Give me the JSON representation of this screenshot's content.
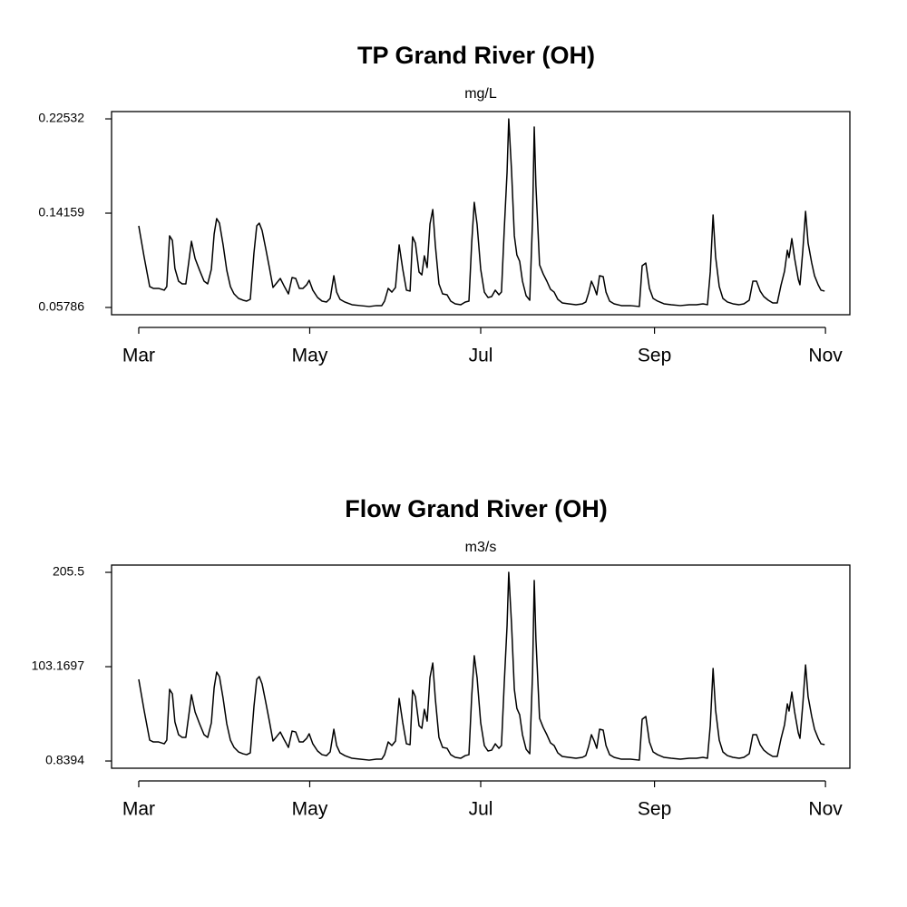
{
  "chart_data": [
    {
      "type": "line",
      "title": "TP Grand River (OH)",
      "subtitle": "mg/L",
      "color": "#000000",
      "xlim": [
        -9.7,
        253.7
      ],
      "xticks": [
        {
          "value": 0,
          "label": "Mar"
        },
        {
          "value": 61,
          "label": "May"
        },
        {
          "value": 122,
          "label": "Jul"
        },
        {
          "value": 184,
          "label": "Sep"
        },
        {
          "value": 245,
          "label": "Nov"
        }
      ],
      "ylim": [
        0.0514,
        0.2318
      ],
      "yticks": [
        0.05786,
        0.14159,
        0.22532
      ],
      "x": [
        0.0,
        1.9,
        3.9,
        5.2,
        7.1,
        9.1,
        10.0,
        11.0,
        12.0,
        12.9,
        14.2,
        15.5,
        16.8,
        17.8,
        18.8,
        20.1,
        21.7,
        23.3,
        24.6,
        25.9,
        26.9,
        27.8,
        28.8,
        30.1,
        31.4,
        32.7,
        34.0,
        35.6,
        37.2,
        38.5,
        39.8,
        41.1,
        42.1,
        43.0,
        44.0,
        45.3,
        46.6,
        47.9,
        49.2,
        50.5,
        51.8,
        53.4,
        54.7,
        56.0,
        57.3,
        58.6,
        59.9,
        60.8,
        62.1,
        63.8,
        65.4,
        67.0,
        68.3,
        69.6,
        70.6,
        71.8,
        73.5,
        76.1,
        79.0,
        82.2,
        84.8,
        86.7,
        87.7,
        89.0,
        90.3,
        91.6,
        92.9,
        94.2,
        95.5,
        96.8,
        97.7,
        98.7,
        100.0,
        101.0,
        101.9,
        102.9,
        103.9,
        104.9,
        105.8,
        107.1,
        108.4,
        110.0,
        111.3,
        112.9,
        114.9,
        116.5,
        117.8,
        118.8,
        119.7,
        120.7,
        122.0,
        123.3,
        124.6,
        125.9,
        127.2,
        128.5,
        129.4,
        130.4,
        131.4,
        132.0,
        133.0,
        134.0,
        134.9,
        135.9,
        136.9,
        138.2,
        139.5,
        140.5,
        141.1,
        141.7,
        143.0,
        144.3,
        145.6,
        146.9,
        148.2,
        149.5,
        151.1,
        153.4,
        156.0,
        158.3,
        159.5,
        160.5,
        161.5,
        162.5,
        163.4,
        164.4,
        165.7,
        166.7,
        168.0,
        169.6,
        172.2,
        175.4,
        178.6,
        179.6,
        180.9,
        182.2,
        183.5,
        185.1,
        187.4,
        190.0,
        193.2,
        196.4,
        199.0,
        201.3,
        202.9,
        203.9,
        204.9,
        205.8,
        207.1,
        208.4,
        210.0,
        212.0,
        214.2,
        215.9,
        217.8,
        219.1,
        220.4,
        221.7,
        223.0,
        224.6,
        226.2,
        227.8,
        229.1,
        230.4,
        231.4,
        232.0,
        233.0,
        234.0,
        235.3,
        235.9,
        236.9,
        237.9,
        238.8,
        240.1,
        241.1,
        242.4,
        243.4,
        244.7
      ],
      "values": [
        0.1303,
        0.1029,
        0.0764,
        0.0748,
        0.0748,
        0.0732,
        0.0764,
        0.1215,
        0.1174,
        0.0925,
        0.0812,
        0.0788,
        0.0788,
        0.0973,
        0.1166,
        0.1013,
        0.0909,
        0.0812,
        0.0788,
        0.0917,
        0.1231,
        0.1368,
        0.1327,
        0.1134,
        0.0909,
        0.0764,
        0.0699,
        0.0659,
        0.0643,
        0.0635,
        0.0651,
        0.1062,
        0.1303,
        0.1327,
        0.1263,
        0.1102,
        0.0933,
        0.0756,
        0.0796,
        0.0836,
        0.0772,
        0.0699,
        0.0844,
        0.0836,
        0.0748,
        0.0748,
        0.078,
        0.082,
        0.0732,
        0.0667,
        0.0635,
        0.0627,
        0.0659,
        0.086,
        0.0715,
        0.0651,
        0.0627,
        0.0603,
        0.0595,
        0.0587,
        0.0595,
        0.0595,
        0.0635,
        0.0748,
        0.0715,
        0.0756,
        0.1134,
        0.0917,
        0.0732,
        0.0724,
        0.1206,
        0.115,
        0.0893,
        0.0868,
        0.1037,
        0.0933,
        0.1319,
        0.1448,
        0.1134,
        0.0788,
        0.0699,
        0.0691,
        0.0635,
        0.0611,
        0.0603,
        0.0627,
        0.0635,
        0.1158,
        0.1512,
        0.1319,
        0.0917,
        0.0715,
        0.0667,
        0.0675,
        0.0732,
        0.0691,
        0.0715,
        0.1271,
        0.1778,
        0.2253,
        0.1794,
        0.1215,
        0.1045,
        0.0989,
        0.0812,
        0.0683,
        0.0643,
        0.136,
        0.2181,
        0.1657,
        0.0957,
        0.0876,
        0.0812,
        0.074,
        0.0715,
        0.0651,
        0.0619,
        0.0611,
        0.0603,
        0.0611,
        0.0627,
        0.0707,
        0.0812,
        0.0756,
        0.0691,
        0.086,
        0.0852,
        0.0715,
        0.0635,
        0.0611,
        0.0595,
        0.0595,
        0.0587,
        0.0949,
        0.0973,
        0.0748,
        0.0659,
        0.0635,
        0.0611,
        0.0603,
        0.0595,
        0.0603,
        0.0603,
        0.0611,
        0.0603,
        0.0893,
        0.14,
        0.1029,
        0.0764,
        0.0659,
        0.0627,
        0.0611,
        0.0603,
        0.0611,
        0.0643,
        0.0812,
        0.0812,
        0.0724,
        0.0675,
        0.0643,
        0.0619,
        0.0619,
        0.0772,
        0.0901,
        0.1086,
        0.1021,
        0.119,
        0.1013,
        0.0828,
        0.078,
        0.1078,
        0.1432,
        0.115,
        0.0973,
        0.086,
        0.078,
        0.0732,
        0.0724
      ]
    },
    {
      "type": "line",
      "title": "Flow Grand River (OH)",
      "subtitle": "m3/s",
      "color": "#000000",
      "xlim": [
        -9.7,
        253.7
      ],
      "xticks": [
        {
          "value": 0,
          "label": "Mar"
        },
        {
          "value": 61,
          "label": "May"
        },
        {
          "value": 122,
          "label": "Jul"
        },
        {
          "value": 184,
          "label": "Sep"
        },
        {
          "value": 245,
          "label": "Nov"
        }
      ],
      "ylim": [
        -7.0,
        213.4
      ],
      "yticks": [
        0.8394,
        103.1697,
        205.5
      ],
      "x": [
        0.0,
        1.9,
        3.9,
        5.2,
        7.1,
        9.1,
        10.0,
        11.0,
        12.0,
        12.9,
        14.2,
        15.5,
        16.8,
        17.8,
        18.8,
        20.1,
        21.7,
        23.3,
        24.6,
        25.9,
        26.9,
        27.8,
        28.8,
        30.1,
        31.4,
        32.7,
        34.0,
        35.6,
        37.2,
        38.5,
        39.8,
        41.1,
        42.1,
        43.0,
        44.0,
        45.3,
        46.6,
        47.9,
        49.2,
        50.5,
        51.8,
        53.4,
        54.7,
        56.0,
        57.3,
        58.6,
        59.9,
        60.8,
        62.1,
        63.8,
        65.4,
        67.0,
        68.3,
        69.6,
        70.6,
        71.8,
        73.5,
        76.1,
        79.0,
        82.2,
        84.8,
        86.7,
        87.7,
        89.0,
        90.3,
        91.6,
        92.9,
        94.2,
        95.5,
        96.8,
        97.7,
        98.7,
        100.0,
        101.0,
        101.9,
        102.9,
        103.9,
        104.9,
        105.8,
        107.1,
        108.4,
        110.0,
        111.3,
        112.9,
        114.9,
        116.5,
        117.8,
        118.8,
        119.7,
        120.7,
        122.0,
        123.3,
        124.6,
        125.9,
        127.2,
        128.5,
        129.4,
        130.4,
        131.4,
        132.0,
        133.0,
        134.0,
        134.9,
        135.9,
        136.9,
        138.2,
        139.5,
        140.5,
        141.1,
        141.7,
        143.0,
        144.3,
        145.6,
        146.9,
        148.2,
        149.5,
        151.1,
        153.4,
        156.0,
        158.3,
        159.5,
        160.5,
        161.5,
        162.5,
        163.4,
        164.4,
        165.7,
        166.7,
        168.0,
        169.6,
        172.2,
        175.4,
        178.6,
        179.6,
        180.9,
        182.2,
        183.5,
        185.1,
        187.4,
        190.0,
        193.2,
        196.4,
        199.0,
        201.3,
        202.9,
        203.9,
        204.9,
        205.8,
        207.1,
        208.4,
        210.0,
        212.0,
        214.2,
        215.9,
        217.8,
        219.1,
        220.4,
        221.7,
        223.0,
        224.6,
        226.2,
        227.8,
        229.1,
        230.4,
        231.4,
        232.0,
        233.0,
        234.0,
        235.3,
        235.9,
        236.9,
        237.9,
        238.8,
        240.1,
        241.1,
        242.4,
        243.4,
        244.7
      ],
      "values": [
        89.4,
        56.0,
        23.5,
        21.5,
        21.5,
        19.5,
        23.5,
        78.6,
        73.7,
        43.2,
        29.4,
        26.4,
        26.4,
        49.1,
        72.7,
        54.0,
        41.2,
        29.4,
        26.4,
        42.2,
        80.5,
        97.3,
        92.4,
        68.7,
        41.2,
        23.5,
        15.6,
        10.7,
        8.7,
        7.7,
        9.7,
        59.9,
        89.4,
        92.4,
        84.5,
        64.8,
        44.1,
        22.5,
        27.4,
        32.3,
        24.5,
        15.6,
        33.3,
        32.3,
        21.5,
        21.5,
        25.4,
        30.4,
        19.5,
        11.7,
        7.7,
        6.7,
        10.7,
        35.3,
        17.6,
        9.7,
        6.7,
        3.8,
        2.8,
        1.8,
        2.8,
        2.8,
        7.7,
        21.5,
        17.6,
        22.5,
        68.7,
        42.2,
        19.5,
        18.6,
        77.6,
        70.7,
        39.2,
        36.3,
        56.9,
        44.1,
        91.4,
        107.1,
        68.7,
        26.4,
        15.6,
        14.6,
        7.7,
        4.8,
        3.8,
        6.7,
        7.7,
        71.7,
        115.0,
        91.4,
        42.2,
        17.6,
        11.7,
        12.6,
        19.5,
        14.6,
        17.6,
        85.5,
        147.5,
        205.5,
        149.4,
        78.6,
        57.9,
        51.0,
        29.4,
        13.6,
        8.7,
        96.3,
        196.7,
        132.7,
        47.1,
        37.2,
        29.4,
        20.5,
        17.6,
        9.7,
        5.8,
        4.8,
        3.8,
        4.8,
        6.7,
        16.6,
        29.4,
        22.5,
        14.6,
        35.3,
        34.3,
        17.6,
        7.7,
        4.8,
        2.8,
        2.8,
        1.8,
        46.1,
        49.1,
        21.5,
        10.7,
        7.7,
        4.8,
        3.8,
        2.8,
        3.8,
        3.8,
        4.8,
        3.8,
        39.2,
        101.2,
        56.0,
        23.5,
        10.7,
        6.7,
        4.8,
        3.8,
        4.8,
        8.7,
        29.4,
        29.4,
        18.6,
        12.6,
        8.7,
        5.8,
        5.8,
        24.5,
        40.2,
        62.8,
        55.0,
        75.6,
        54.0,
        31.3,
        25.4,
        61.8,
        105.1,
        70.7,
        49.1,
        35.3,
        25.4,
        19.5,
        18.6
      ]
    }
  ]
}
